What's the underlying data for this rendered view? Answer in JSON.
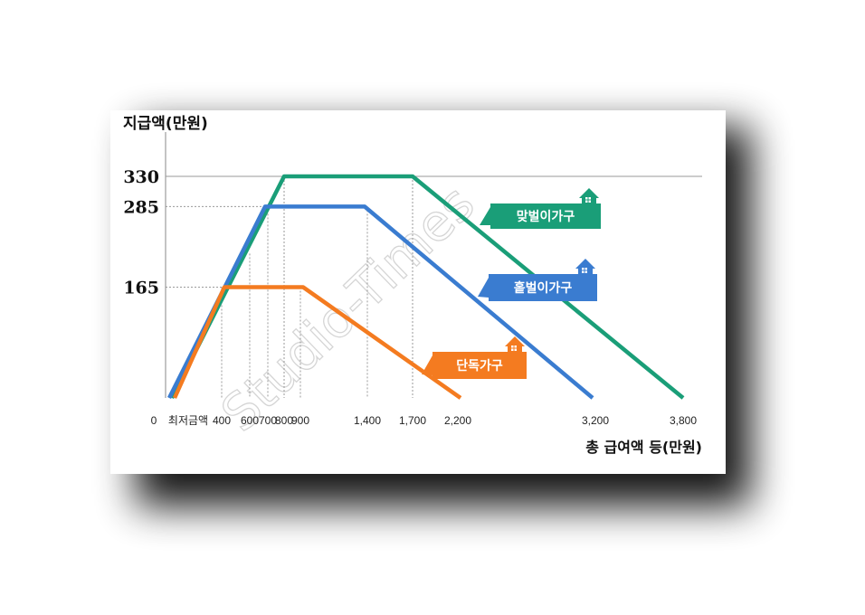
{
  "colors": {
    "dual_income": "#1a9e78",
    "single_income": "#3a7cd0",
    "single_person": "#f0a021",
    "single_person_label": "#f47b20",
    "grid": "#9a9a9a"
  },
  "watermark": "Studio-Times",
  "chart_data": {
    "type": "line",
    "ylabel": "지급액(만원)",
    "xlabel": "총 급여액 등(만원)",
    "yticks": [
      "330",
      "285",
      "165"
    ],
    "xticks": [
      "0",
      "최저금액",
      "400",
      "600",
      "700",
      "800",
      "900",
      "1,400",
      "1,700",
      "2,200",
      "3,200",
      "3,800"
    ],
    "ylim": [
      0,
      330
    ],
    "series": [
      {
        "name": "맞벌이가구",
        "color": "#1a9e78",
        "icon": "house-icon",
        "points": [
          [
            0,
            0
          ],
          [
            800,
            330
          ],
          [
            1700,
            330
          ],
          [
            3800,
            0
          ]
        ]
      },
      {
        "name": "홑벌이가구",
        "color": "#3a7cd0",
        "icon": "house-icon",
        "points": [
          [
            0,
            0
          ],
          [
            700,
            285
          ],
          [
            1400,
            285
          ],
          [
            3200,
            0
          ]
        ]
      },
      {
        "name": "단독가구",
        "color": "#f47b20",
        "icon": "house-icon",
        "points": [
          [
            0,
            0
          ],
          [
            400,
            165
          ],
          [
            900,
            165
          ],
          [
            2200,
            0
          ]
        ]
      }
    ]
  }
}
